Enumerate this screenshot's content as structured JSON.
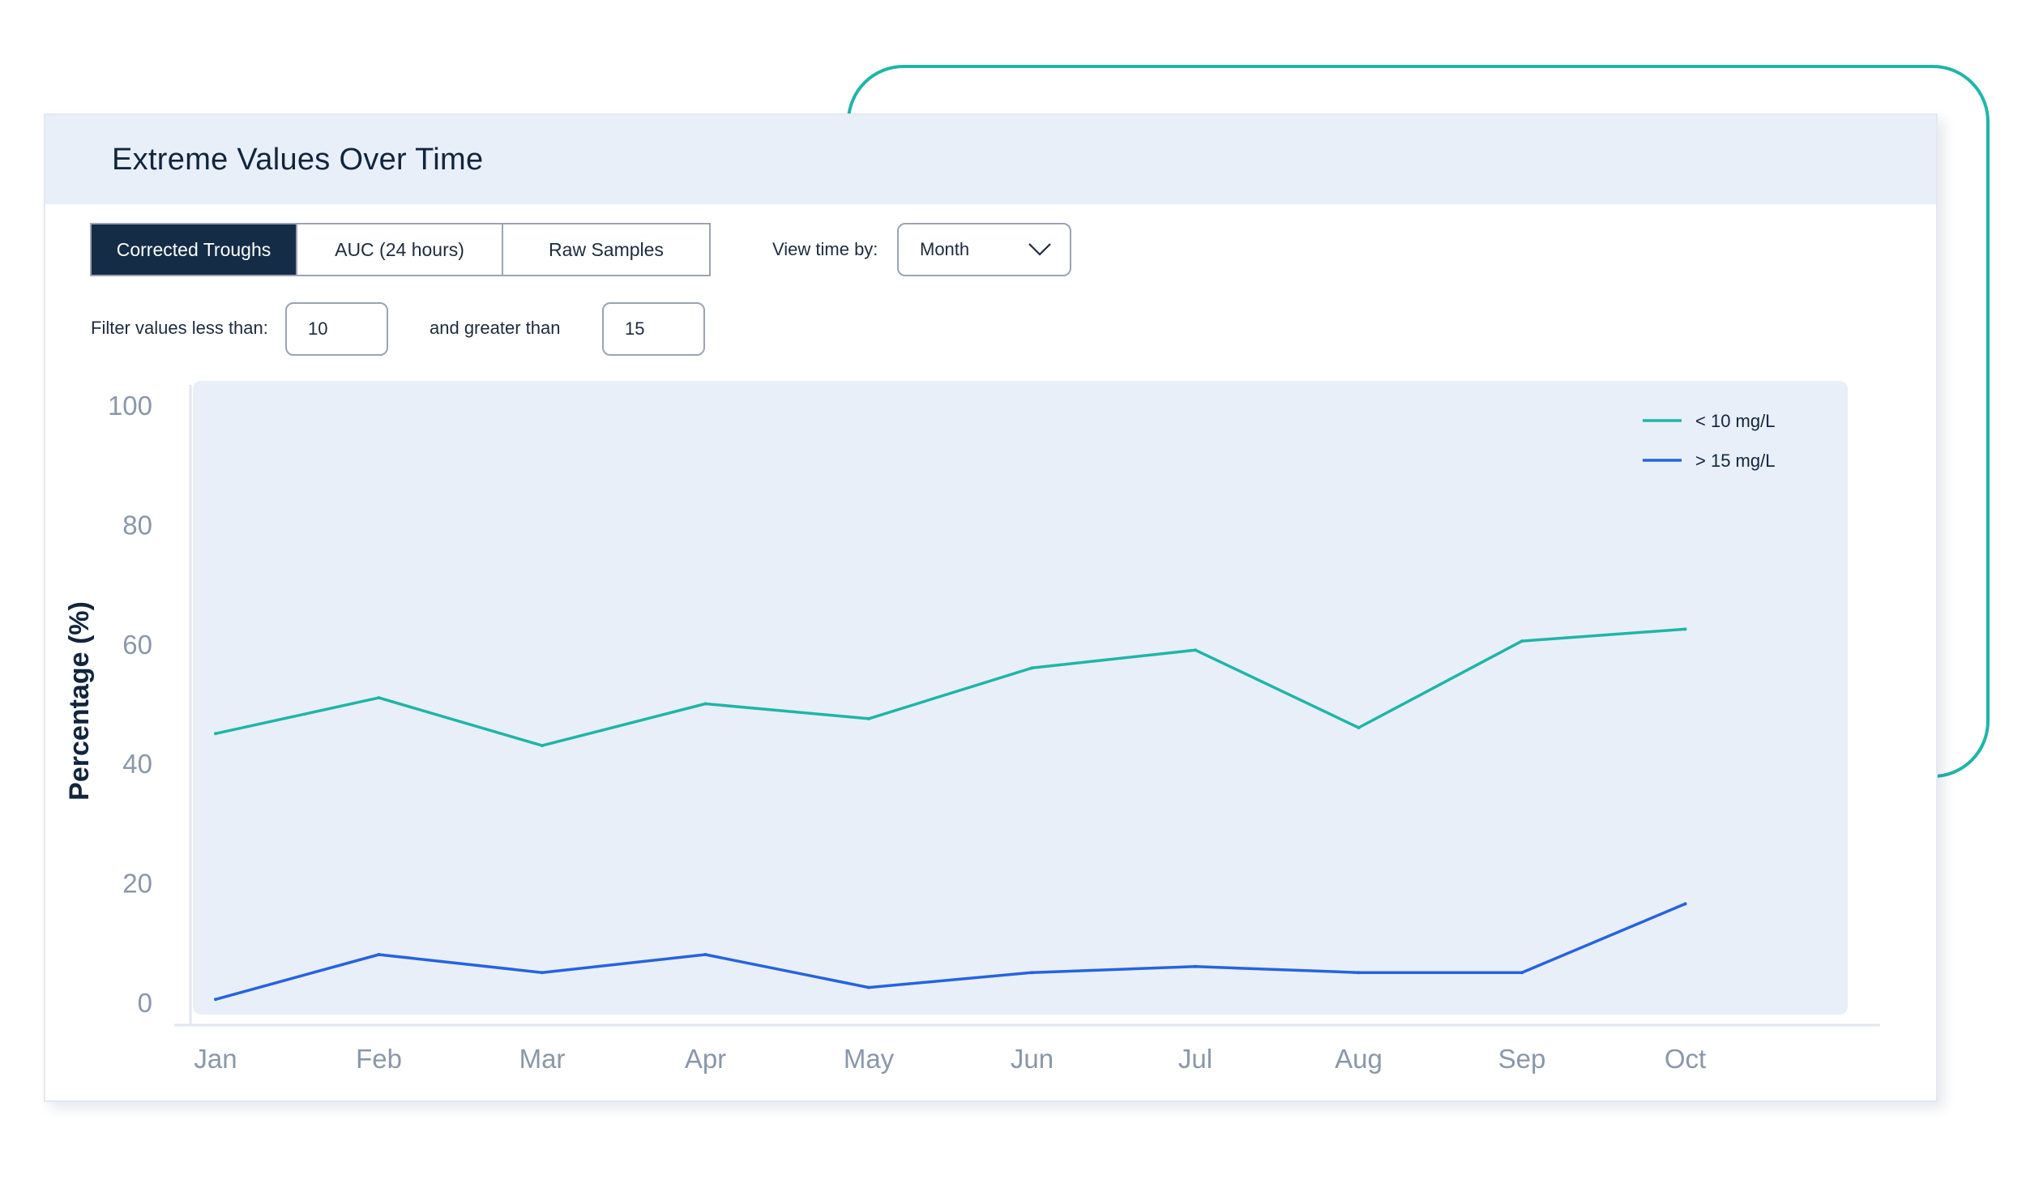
{
  "card": {
    "title": "Extreme Values Over Time"
  },
  "metric_tabs": [
    {
      "label": "Corrected Troughs",
      "active": true
    },
    {
      "label": "AUC (24 hours)",
      "active": false
    },
    {
      "label": "Raw Samples",
      "active": false
    }
  ],
  "view_time": {
    "label": "View time by:",
    "selected": "Month"
  },
  "filter": {
    "less_than_label": "Filter values less than:",
    "less_than_value": "10",
    "greater_than_label": "and greater than",
    "greater_than_value": "15"
  },
  "colors": {
    "teal": "#1fb5a8",
    "blue": "#2563e0",
    "navy": "#142c46",
    "plot_bg": "#e8eff8"
  },
  "chart_data": {
    "type": "line",
    "ylabel": "Percentage (%)",
    "ylim": [
      0,
      100
    ],
    "yticks": [
      0,
      20,
      40,
      60,
      80,
      100
    ],
    "categories": [
      "Jan",
      "Feb",
      "Mar",
      "Apr",
      "May",
      "Jun",
      "Jul",
      "Aug",
      "Sep",
      "Oct"
    ],
    "legend_position": "top-right",
    "series": [
      {
        "name": "< 10 mg/L",
        "color": "#1fb5a8",
        "values": [
          45,
          51,
          43,
          50,
          47.5,
          56,
          59,
          46,
          60.5,
          62.5
        ]
      },
      {
        "name": "> 15 mg/L",
        "color": "#2563e0",
        "values": [
          0.5,
          8,
          5,
          8,
          2.5,
          5,
          6,
          5,
          5,
          16.5
        ]
      }
    ]
  }
}
